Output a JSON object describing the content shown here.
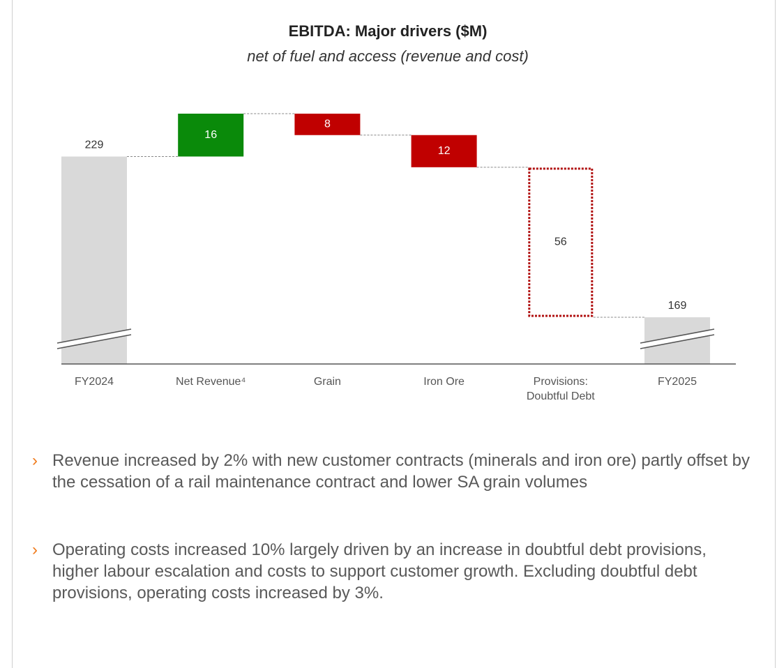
{
  "chart_data": {
    "type": "waterfall",
    "title": "EBITDA: Major drivers ($M)",
    "subtitle": "net of fuel and access (revenue and cost)",
    "categories": [
      "FY2024",
      "Net Revenue⁴",
      "Grain",
      "Iron Ore",
      "Provisions: Doubtful Debt",
      "FY2025"
    ],
    "values": [
      229,
      16,
      -8,
      -12,
      -56,
      169
    ],
    "value_labels": [
      "229",
      "16",
      "8",
      "12",
      "56",
      "169"
    ],
    "kinds": [
      "total",
      "delta",
      "delta",
      "delta",
      "outline",
      "total"
    ],
    "colors": [
      "#d9d9d9",
      "#0a8a0a",
      "#c00000",
      "#c00000",
      "#b01010",
      "#d9d9d9"
    ],
    "axis_break": true
  },
  "bullets": [
    "Revenue increased by 2% with new customer contracts (minerals and iron ore) partly offset by the cessation of a rail maintenance contract and lower SA grain volumes",
    "Operating costs increased 10% largely driven by an increase in doubtful debt provisions, higher labour escalation and costs to support customer growth. Excluding doubtful debt provisions, operating costs increased by 3%."
  ]
}
